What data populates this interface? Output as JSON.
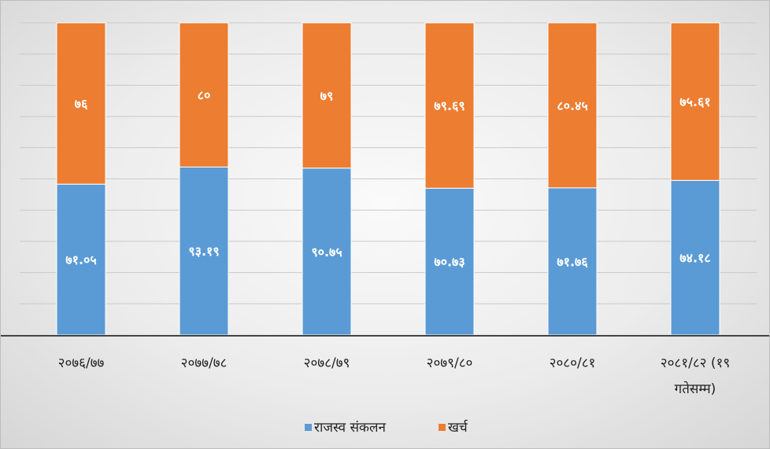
{
  "chart_data": {
    "type": "bar",
    "stacked": true,
    "percent_stacked": true,
    "categories": [
      "२०७६/७७",
      "२०७७/७८",
      "२०७८/७९",
      "२०७९/८०",
      "२०८०/८१",
      "२०८१/८२ (१९ गतेसम्म)"
    ],
    "category_lines": [
      [
        "२०७६/७७"
      ],
      [
        "२०७७/७८"
      ],
      [
        "२०७८/७९"
      ],
      [
        "२०७९/८०"
      ],
      [
        "२०८०/८१"
      ],
      [
        "२०८१/८२ (१९",
        "गतेसम्म)"
      ]
    ],
    "series": [
      {
        "name": "राजस्व संकलन",
        "color": "#5b9bd5",
        "values": [
          71.05,
          93.19,
          90.75,
          70.73,
          71.76,
          74.18
        ],
        "labels": [
          "७१.०५",
          "९३.१९",
          "९०.७५",
          "७०.७३",
          "७१.७६",
          "७४.१८"
        ]
      },
      {
        "name": "खर्च",
        "color": "#ed7d31",
        "values": [
          76,
          80,
          79,
          79.69,
          80.45,
          75.61
        ],
        "labels": [
          "७६",
          "८०",
          "७९",
          "७९.६९",
          "८०.४५",
          "७५.६१"
        ]
      }
    ],
    "legend_position": "bottom",
    "grid": true,
    "gridline_count": 10
  }
}
